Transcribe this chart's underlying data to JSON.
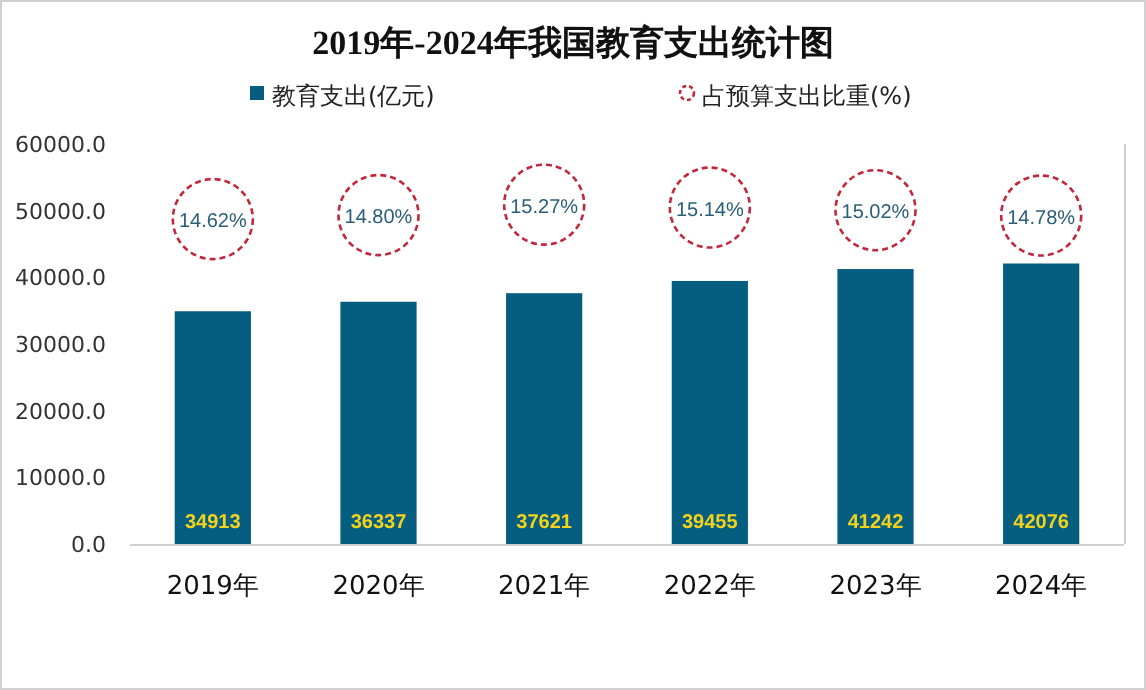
{
  "chart_data": {
    "type": "bar",
    "title": "2019年-2024年我国教育支出统计图",
    "categories": [
      "2019年",
      "2020年",
      "2021年",
      "2022年",
      "2023年",
      "2024年"
    ],
    "series": [
      {
        "name": "教育支出(亿元)",
        "color": "#055e80",
        "values": [
          34913,
          36337,
          37621,
          39455,
          41242,
          42076
        ],
        "value_labels": [
          "34913",
          "36337",
          "37621",
          "39455",
          "41242",
          "42076"
        ]
      },
      {
        "name": "占预算支出比重(%)",
        "type": "scatter",
        "axis": "y2",
        "marker": "circle",
        "color": "#c0283c",
        "values": [
          14.62,
          14.8,
          15.27,
          15.14,
          15.02,
          14.78
        ],
        "value_labels": [
          "14.62%",
          "14.80%",
          "15.27%",
          "15.14%",
          "15.02%",
          "14.78%"
        ]
      }
    ],
    "ylim": [
      0,
      60000
    ],
    "yticks": [
      {
        "value": 0,
        "label": "0.0"
      },
      {
        "value": 10000,
        "label": "10000.0"
      },
      {
        "value": 20000,
        "label": "20000.0"
      },
      {
        "value": 30000,
        "label": "30000.0"
      },
      {
        "value": 40000,
        "label": "40000.0"
      },
      {
        "value": 50000,
        "label": "50000.0"
      },
      {
        "value": 60000,
        "label": "60000.0"
      }
    ],
    "y2lim": [
      0,
      18
    ],
    "tick_labels": "xy",
    "legend": "top",
    "grid": false
  }
}
